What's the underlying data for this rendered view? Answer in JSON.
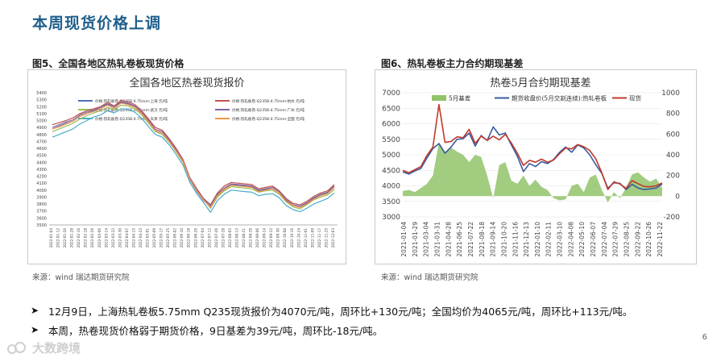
{
  "slide": {
    "title": "本周现货价格上调",
    "page_number": "6",
    "watermark": "大数跨境"
  },
  "left_figure": {
    "caption": "图5、全国各地区热轧卷板现货价格",
    "source": "来源：wind    瑞达期货研究院"
  },
  "right_figure": {
    "caption": "图6、热轧卷板主力合约期现基差",
    "source": "来源：wind    瑞达期货研究院"
  },
  "bullets": [
    "12月9日，上海热轧卷板5.75mm Q235现货报价为4070元/吨，周环比+130元/吨；全国均价为4065元/吨，周环比+113元/吨。",
    "本周，热卷现货价格弱于期货价格，9日基差为39元/吨，周环比-18元/吨。"
  ],
  "chart_data": [
    {
      "type": "line",
      "title": "全国各地区热卷现货报价",
      "ylim": [
        3500,
        5400
      ],
      "yticks": [
        3500,
        3600,
        3700,
        3800,
        3900,
        4000,
        4100,
        4200,
        4300,
        4400,
        4500,
        4600,
        4700,
        4800,
        4900,
        5000,
        5100,
        5200,
        5300,
        5400
      ],
      "x_labels": [
        "2022-01-04",
        "2022-01-12",
        "2022-01-20",
        "2022-01-28",
        "2022-02-10",
        "2022-02-18",
        "2022-02-26",
        "2022-03-06",
        "2022-03-14",
        "2022-03-22",
        "2022-03-30",
        "2022-04-07",
        "2022-04-15",
        "2022-04-23",
        "2022-05-01",
        "2022-05-09",
        "2022-05-17",
        "2022-05-25",
        "2022-06-02",
        "2022-06-10",
        "2022-06-18",
        "2022-06-26",
        "2022-07-04",
        "2022-07-12",
        "2022-07-20",
        "2022-07-28",
        "2022-08-05",
        "2022-08-13",
        "2022-08-21",
        "2022-08-29",
        "2022-09-06",
        "2022-09-14",
        "2022-09-22",
        "2022-09-30",
        "2022-10-08",
        "2022-10-16",
        "2022-10-24",
        "2022-11-01",
        "2022-11-09",
        "2022-11-17",
        "2022-11-25",
        "2022-12-03"
      ],
      "grid": false,
      "legend_position": "top",
      "series": [
        {
          "name": "价格:热轧板卷:Q235B:4.75mm:上海  元/吨",
          "color": "#4f6fb8",
          "values": [
            4880,
            4920,
            4960,
            4990,
            5060,
            5100,
            5140,
            5170,
            5230,
            5180,
            5260,
            5240,
            5200,
            5100,
            4980,
            4850,
            4820,
            4700,
            4560,
            4400,
            4150,
            3980,
            3850,
            3760,
            3920,
            4010,
            4080,
            4070,
            4060,
            4050,
            3990,
            4010,
            4020,
            3960,
            3850,
            3780,
            3750,
            3810,
            3880,
            3930,
            3960,
            4040
          ]
        },
        {
          "name": "价格:热轧板卷:Q235B:4.75mm:杭州  元/吨",
          "color": "#c0504d",
          "values": [
            4940,
            4970,
            5000,
            5040,
            5100,
            5140,
            5170,
            5200,
            5260,
            5210,
            5290,
            5270,
            5230,
            5140,
            5020,
            4900,
            4860,
            4740,
            4600,
            4440,
            4180,
            4020,
            3880,
            3790,
            3960,
            4060,
            4110,
            4100,
            4090,
            4080,
            4020,
            4040,
            4060,
            3990,
            3880,
            3810,
            3790,
            3840,
            3910,
            3960,
            3990,
            4080
          ]
        },
        {
          "name": "价格:热轧板卷:Q235B:4.75mm:武汉  元/吨",
          "color": "#9bbb59",
          "values": [
            4840,
            4880,
            4920,
            4960,
            5020,
            5070,
            5110,
            5140,
            5190,
            5160,
            5220,
            5210,
            5170,
            5080,
            4960,
            4840,
            4800,
            4690,
            4550,
            4400,
            4160,
            3990,
            3860,
            3740,
            3900,
            3990,
            4050,
            4040,
            4030,
            4020,
            3970,
            3990,
            4000,
            3940,
            3830,
            3760,
            3730,
            3790,
            3860,
            3900,
            3930,
            4010
          ]
        },
        {
          "name": "价格:热轧板卷:Q235B:4.75mm:广州  元/吨",
          "color": "#8064a2",
          "values": [
            4900,
            4940,
            4980,
            5010,
            5080,
            5120,
            5150,
            5190,
            5240,
            5200,
            5270,
            5250,
            5210,
            5120,
            5000,
            4870,
            4840,
            4720,
            4580,
            4420,
            4170,
            4000,
            3870,
            3780,
            3940,
            4030,
            4090,
            4080,
            4070,
            4060,
            4000,
            4020,
            4040,
            3980,
            3860,
            3790,
            3770,
            3820,
            3890,
            3940,
            3970,
            4060
          ]
        },
        {
          "name": "价格:热轧板卷:Q235B:4.75mm:天津  元/吨",
          "color": "#4bacc6",
          "values": [
            4760,
            4800,
            4840,
            4880,
            4950,
            5000,
            5050,
            5080,
            5140,
            5110,
            5170,
            5160,
            5120,
            5030,
            4910,
            4800,
            4760,
            4650,
            4510,
            4360,
            4110,
            3950,
            3820,
            3680,
            3850,
            3940,
            4000,
            3990,
            3980,
            3970,
            3920,
            3940,
            3950,
            3890,
            3780,
            3720,
            3690,
            3740,
            3800,
            3840,
            3880,
            3960
          ]
        },
        {
          "name": "价格:热轧板卷:Q235B:4.75mm:全国  元/吨",
          "color": "#f79646",
          "values": [
            4880,
            4910,
            4950,
            4990,
            5060,
            5100,
            5130,
            5170,
            5220,
            5180,
            5250,
            5230,
            5190,
            5100,
            4980,
            4850,
            4820,
            4700,
            4560,
            4410,
            4160,
            3990,
            3860,
            3750,
            3920,
            4010,
            4070,
            4060,
            4050,
            4040,
            3980,
            4000,
            4020,
            3960,
            3840,
            3780,
            3750,
            3800,
            3870,
            3920,
            3950,
            4040
          ]
        }
      ]
    },
    {
      "type": "line",
      "title": "热卷5月合约期现基差",
      "ylim": [
        3000,
        7000
      ],
      "yticks": [
        3000,
        3500,
        4000,
        4500,
        5000,
        5500,
        6000,
        6500,
        7000
      ],
      "y2lim": [
        -200,
        1000
      ],
      "y2ticks": [
        -200,
        0,
        200,
        400,
        600,
        800,
        1000
      ],
      "x_labels": [
        "2021-01-04",
        "2021-01-29",
        "2021-03-04",
        "2021-03-31",
        "2021-04-28",
        "2021-06-25",
        "2021-07-22",
        "2021-08-18",
        "2021-09-14",
        "2021-10-20",
        "2021-11-16",
        "2021-12-13",
        "2022-01-10",
        "2022-02-11",
        "2022-03-10",
        "2022-04-08",
        "2022-05-10",
        "2022-06-07",
        "2022-07-04",
        "2022-07-29",
        "2022-08-25",
        "2022-09-22",
        "2022-10-26",
        "2022-11-22"
      ],
      "grid": true,
      "legend_position": "top",
      "series": [
        {
          "name": "5月基差",
          "color": "#92c36a",
          "axis": "right",
          "kind": "area",
          "values": [
            50,
            60,
            40,
            80,
            120,
            200,
            520,
            430,
            470,
            430,
            400,
            330,
            400,
            380,
            200,
            -20,
            300,
            330,
            150,
            120,
            200,
            100,
            160,
            90,
            60,
            -20,
            -40,
            -30,
            100,
            120,
            40,
            180,
            210,
            60,
            -60,
            40,
            -20,
            80,
            210,
            230,
            180,
            140,
            170,
            80
          ]
        },
        {
          "name": "期货收盘价(5月交割连续):热轧卷板",
          "color": "#3a5ba0",
          "axis": "left",
          "values": [
            4450,
            4380,
            4480,
            4560,
            4900,
            5200,
            5360,
            5050,
            5250,
            5500,
            5520,
            5700,
            5280,
            5620,
            5460,
            5900,
            5640,
            5700,
            5320,
            4950,
            4460,
            4720,
            4620,
            4780,
            4720,
            4850,
            5080,
            5250,
            5080,
            5320,
            5220,
            5000,
            4680,
            4400,
            3920,
            4100,
            4080,
            3880,
            4050,
            3930,
            3880,
            3900,
            3930,
            4060
          ]
        },
        {
          "name": "现货",
          "color": "#c0392b",
          "axis": "left",
          "values": [
            4500,
            4420,
            4520,
            4620,
            4980,
            5250,
            6620,
            5400,
            5430,
            5580,
            5550,
            5820,
            5370,
            5600,
            5470,
            5600,
            5480,
            5660,
            5380,
            5050,
            4660,
            4820,
            4760,
            4860,
            4760,
            4830,
            5040,
            5220,
            5190,
            5330,
            5260,
            5140,
            4870,
            4420,
            3880,
            4130,
            4060,
            3920,
            4170,
            4070,
            3980,
            3970,
            4000,
            4090
          ]
        }
      ]
    }
  ]
}
